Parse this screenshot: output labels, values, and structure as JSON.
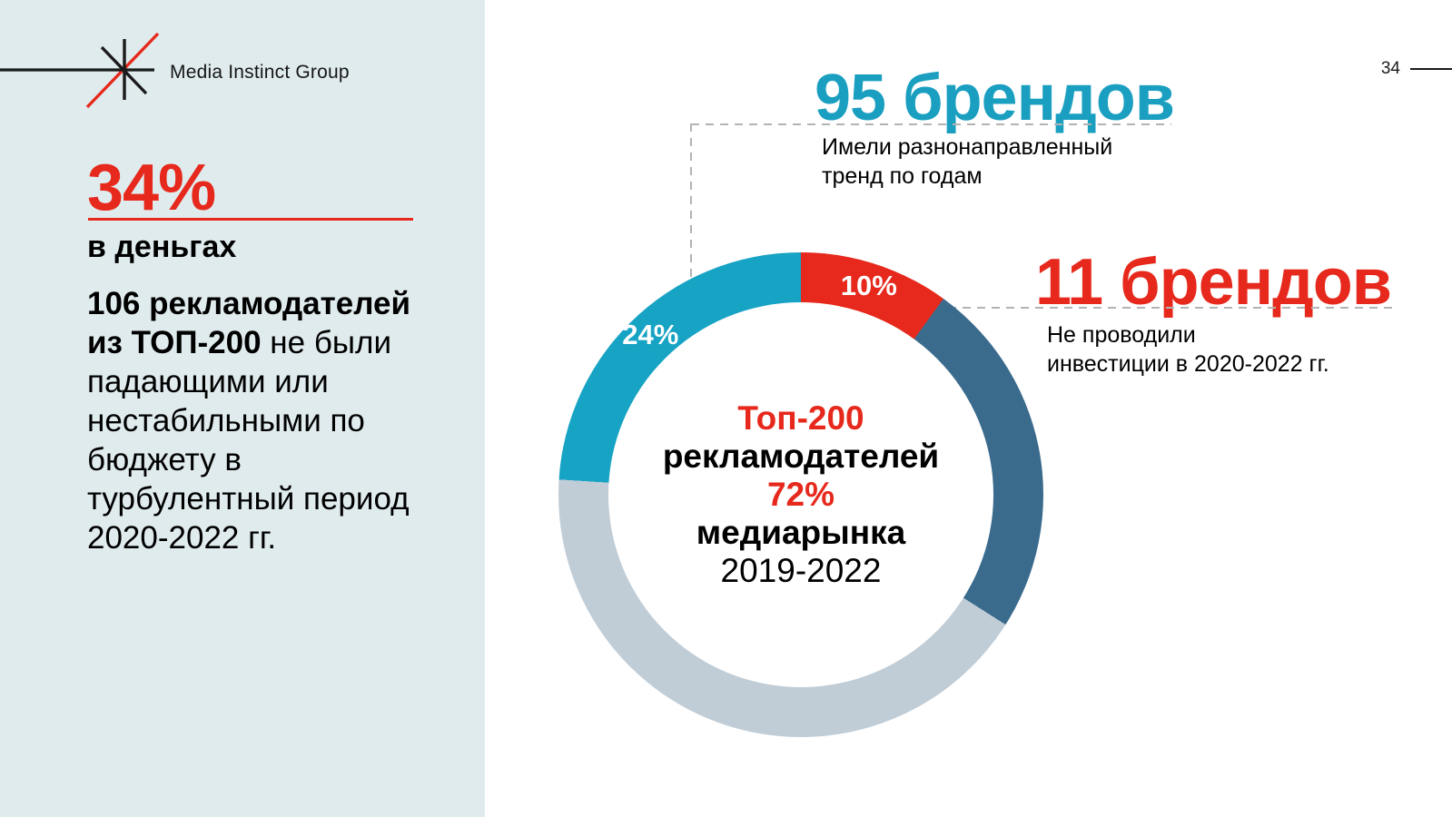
{
  "slide": {
    "page_number": "34"
  },
  "brand": {
    "name": "Media Instinct Group"
  },
  "palette": {
    "red": "#e6291c",
    "teal_text": "#1a9fc1",
    "panel_bg": "#e0ebee",
    "dash_gray": "#b3b3b3",
    "dot_gray": "#a6a6a6"
  },
  "sidebar": {
    "stat_value": "34%",
    "stat_label": "в деньгах",
    "body_lines": [
      {
        "bold": "106 рекламодателей",
        "regular": ""
      },
      {
        "bold": "из ТОП-200",
        "regular": " не были"
      },
      {
        "bold": "",
        "regular": "падающими или"
      },
      {
        "bold": "",
        "regular": "нестабильными по"
      },
      {
        "bold": "",
        "regular": "бюджету в"
      },
      {
        "bold": "",
        "regular": "турбулентный период"
      },
      {
        "bold": "",
        "regular": "2020-2022 гг."
      }
    ]
  },
  "callouts": {
    "varied": {
      "title": "95 брендов",
      "desc_lines": [
        "Имели разнонаправленный",
        "тренд по годам"
      ]
    },
    "no_invest": {
      "title": "11 брендов",
      "desc_lines": [
        "Не проводили",
        "инвестиции в 2020-2022 гг."
      ]
    }
  },
  "chart_data": {
    "type": "pie",
    "subtype": "donut",
    "start_angle_deg": 0,
    "direction": "clockwise",
    "segments": [
      {
        "value_pct": 10,
        "color": "#e6291c",
        "data_label": "10%",
        "callout": "11 брендов — Не проводили инвестиции в 2020-2022 гг."
      },
      {
        "value_pct": 24,
        "color": "#3a6b8d",
        "data_label": ""
      },
      {
        "value_pct": 42,
        "color": "#c0cdd7",
        "data_label": ""
      },
      {
        "value_pct": 24,
        "color": "#17a3c4",
        "data_label": "24%",
        "callout": "95 брендов — Имели разнонаправленный тренд по годам"
      }
    ],
    "center_lines": [
      {
        "text": "Топ-200",
        "color": "#e6291c",
        "bold": true
      },
      {
        "text": "рекламодателей",
        "color": "#000000",
        "bold": true
      },
      {
        "text": "72%",
        "color": "#e6291c",
        "bold": true
      },
      {
        "text": "медиарынка",
        "color": "#000000",
        "bold": true
      },
      {
        "text": "2019-2022",
        "color": "#000000",
        "bold": false
      }
    ],
    "label_radius_px": 242,
    "outer_radius_px": 267,
    "inner_radius_px": 212
  }
}
